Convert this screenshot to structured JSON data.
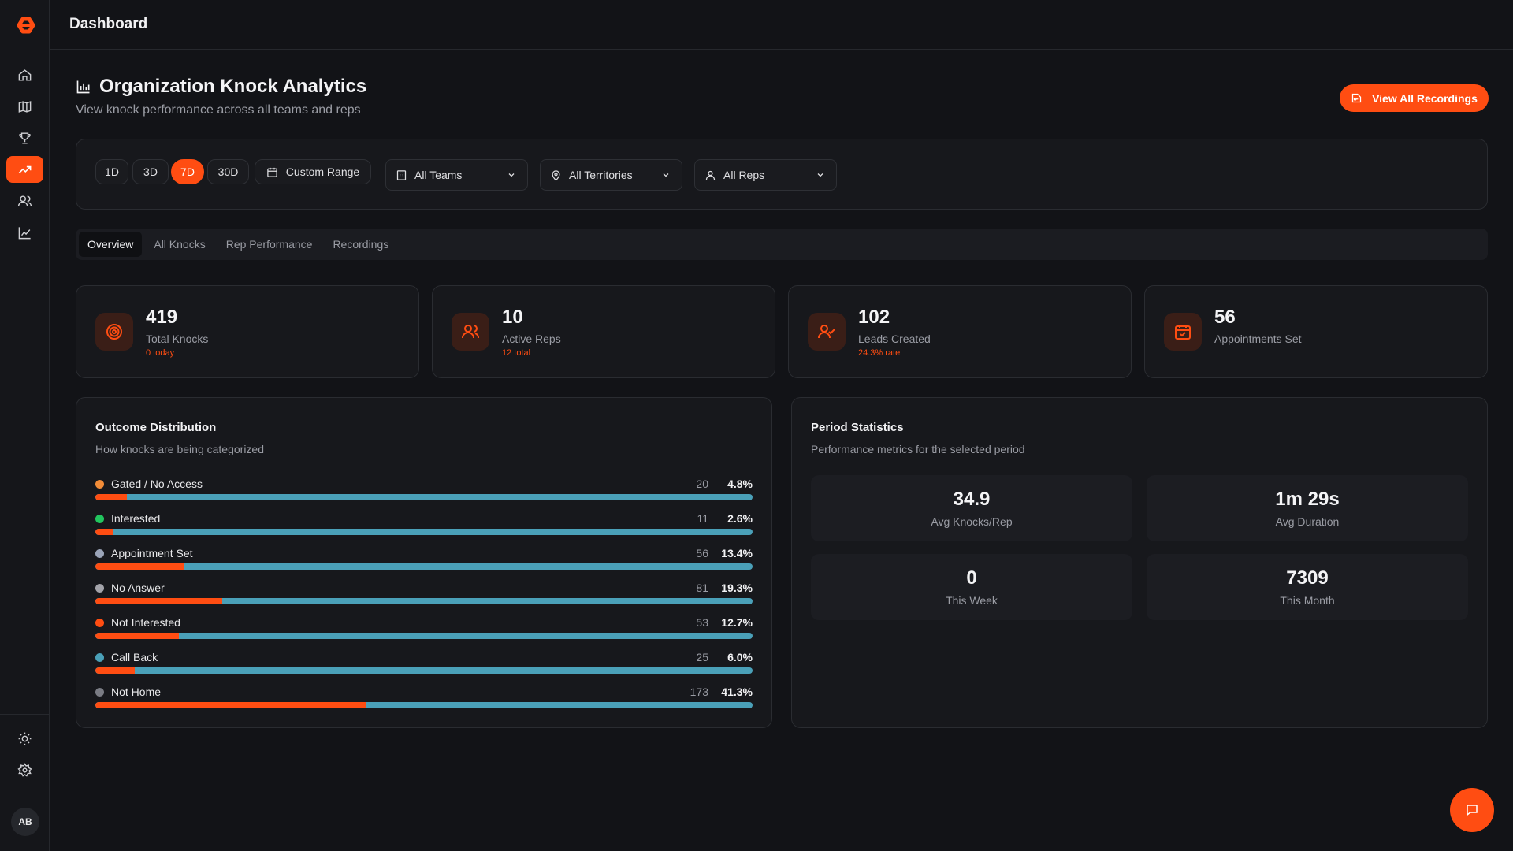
{
  "app": {
    "title": "Dashboard"
  },
  "sidebar": {
    "items": [
      {
        "icon": "home-icon",
        "active": false
      },
      {
        "icon": "map-icon",
        "active": false
      },
      {
        "icon": "trophy-icon",
        "active": false
      },
      {
        "icon": "trending-up-icon",
        "active": true
      },
      {
        "icon": "users-icon",
        "active": false
      },
      {
        "icon": "line-chart-icon",
        "active": false
      }
    ],
    "bottom": [
      "sun-icon",
      "settings-icon"
    ],
    "avatar_initials": "AB"
  },
  "header": {
    "title": "Organization Knock Analytics",
    "subtitle": "View knock performance across all teams and reps",
    "action_label": "View All Recordings"
  },
  "filters": {
    "ranges": [
      "1D",
      "3D",
      "7D",
      "30D"
    ],
    "active_range": "7D",
    "custom_range_label": "Custom Range",
    "teams": "All Teams",
    "territories": "All Territories",
    "reps": "All Reps"
  },
  "tabs": [
    "Overview",
    "All Knocks",
    "Rep Performance",
    "Recordings"
  ],
  "active_tab": "Overview",
  "stats": [
    {
      "value": "419",
      "label": "Total Knocks",
      "sub": "0 today",
      "icon": "target-icon"
    },
    {
      "value": "10",
      "label": "Active Reps",
      "sub": "12 total",
      "icon": "users-icon"
    },
    {
      "value": "102",
      "label": "Leads Created",
      "sub": "24.3% rate",
      "icon": "user-check-icon"
    },
    {
      "value": "56",
      "label": "Appointments Set",
      "sub": "",
      "icon": "calendar-check-icon"
    }
  ],
  "outcome": {
    "title": "Outcome Distribution",
    "subtitle": "How knocks are being categorized",
    "rows": [
      {
        "label": "Gated / No Access",
        "count": "20",
        "pct": "4.8%",
        "fraction": 0.048,
        "color": "#f28c38"
      },
      {
        "label": "Interested",
        "count": "11",
        "pct": "2.6%",
        "fraction": 0.026,
        "color": "#22c55e"
      },
      {
        "label": "Appointment Set",
        "count": "56",
        "pct": "13.4%",
        "fraction": 0.134,
        "color": "#9aa4b8"
      },
      {
        "label": "No Answer",
        "count": "81",
        "pct": "19.3%",
        "fraction": 0.193,
        "color": "#a3a3aa"
      },
      {
        "label": "Not Interested",
        "count": "53",
        "pct": "12.7%",
        "fraction": 0.127,
        "color": "#ff4d12"
      },
      {
        "label": "Call Back",
        "count": "25",
        "pct": "6.0%",
        "fraction": 0.06,
        "color": "#4aa0b8"
      },
      {
        "label": "Not Home",
        "count": "173",
        "pct": "41.3%",
        "fraction": 0.413,
        "color": "#7a7c84"
      }
    ]
  },
  "period": {
    "title": "Period Statistics",
    "subtitle": "Performance metrics for the selected period",
    "metrics": [
      {
        "value": "34.9",
        "label": "Avg Knocks/Rep"
      },
      {
        "value": "1m 29s",
        "label": "Avg Duration"
      },
      {
        "value": "0",
        "label": "This Week"
      },
      {
        "value": "7309",
        "label": "This Month"
      }
    ]
  },
  "colors": {
    "accent": "#ff4d12",
    "bar_track": "#4aa0b8",
    "background": "#121317",
    "card": "#17181c"
  },
  "fab_icon": "chat-icon"
}
